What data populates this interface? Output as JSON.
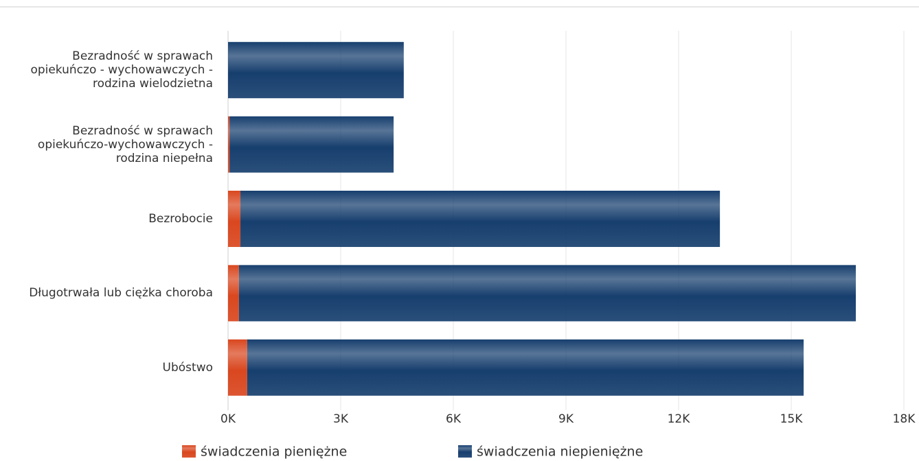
{
  "chart_data": {
    "type": "stacked-barh",
    "categories": [
      "Bezradność w sprawach opiekuńczo - wychowawczych - rodzina wielodzietna",
      "Bezradność w sprawach opiekuńczo-wychowawczych - rodzina niepełna",
      "Bezrobocie",
      "Długotrwała lub ciężka choroba",
      "Ubóstwo"
    ],
    "series": [
      {
        "name": "świadczenia pieniężne",
        "color": "#d9471f",
        "values": [
          0,
          40,
          330,
          290,
          510
        ]
      },
      {
        "name": "świadczenia niepieniężne",
        "color": "#173f6e",
        "values": [
          4680,
          4370,
          12770,
          16430,
          14820
        ]
      }
    ],
    "xlim": [
      0,
      18000
    ],
    "xticks": [
      {
        "value": 0,
        "label": "0K"
      },
      {
        "value": 3000,
        "label": "3K"
      },
      {
        "value": 6000,
        "label": "6K"
      },
      {
        "value": 9000,
        "label": "9K"
      },
      {
        "value": 12000,
        "label": "12K"
      },
      {
        "value": 15000,
        "label": "15K"
      },
      {
        "value": 18000,
        "label": "18K"
      }
    ],
    "grid": true
  }
}
